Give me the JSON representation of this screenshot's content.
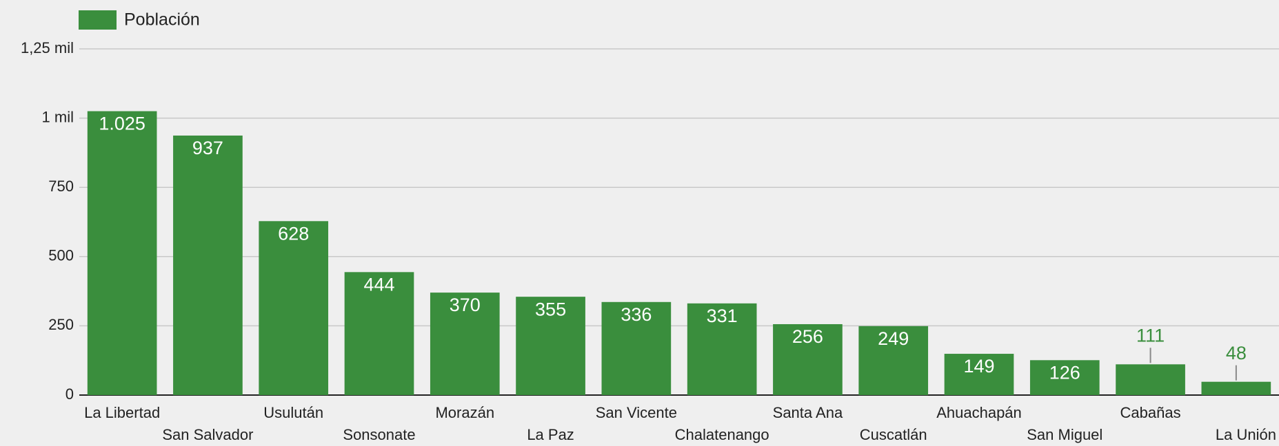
{
  "chart_data": {
    "type": "bar",
    "legend": "Población",
    "series": [
      {
        "name": "Población",
        "color": "#3a8e3d",
        "values": [
          1025,
          937,
          628,
          444,
          370,
          355,
          336,
          331,
          256,
          249,
          149,
          126,
          111,
          48
        ],
        "value_labels": [
          "1.025",
          "937",
          "628",
          "444",
          "370",
          "355",
          "336",
          "331",
          "256",
          "249",
          "149",
          "126",
          "111",
          "48"
        ]
      }
    ],
    "categories": [
      "La Libertad",
      "San Salvador",
      "Usulután",
      "Sonsonate",
      "Morazán",
      "La Paz",
      "San Vicente",
      "Chalatenango",
      "Santa Ana",
      "Cuscatlán",
      "Ahuachapán",
      "San Miguel",
      "Cabañas",
      "La Unión"
    ],
    "ylim": [
      0,
      1250
    ],
    "yticks": [
      0,
      250,
      500,
      750,
      {
        "value": 1000,
        "label": "1 mil"
      },
      {
        "value": 1250,
        "label": "1,25 mil"
      }
    ],
    "grid": true,
    "legend_position": "top-left"
  }
}
